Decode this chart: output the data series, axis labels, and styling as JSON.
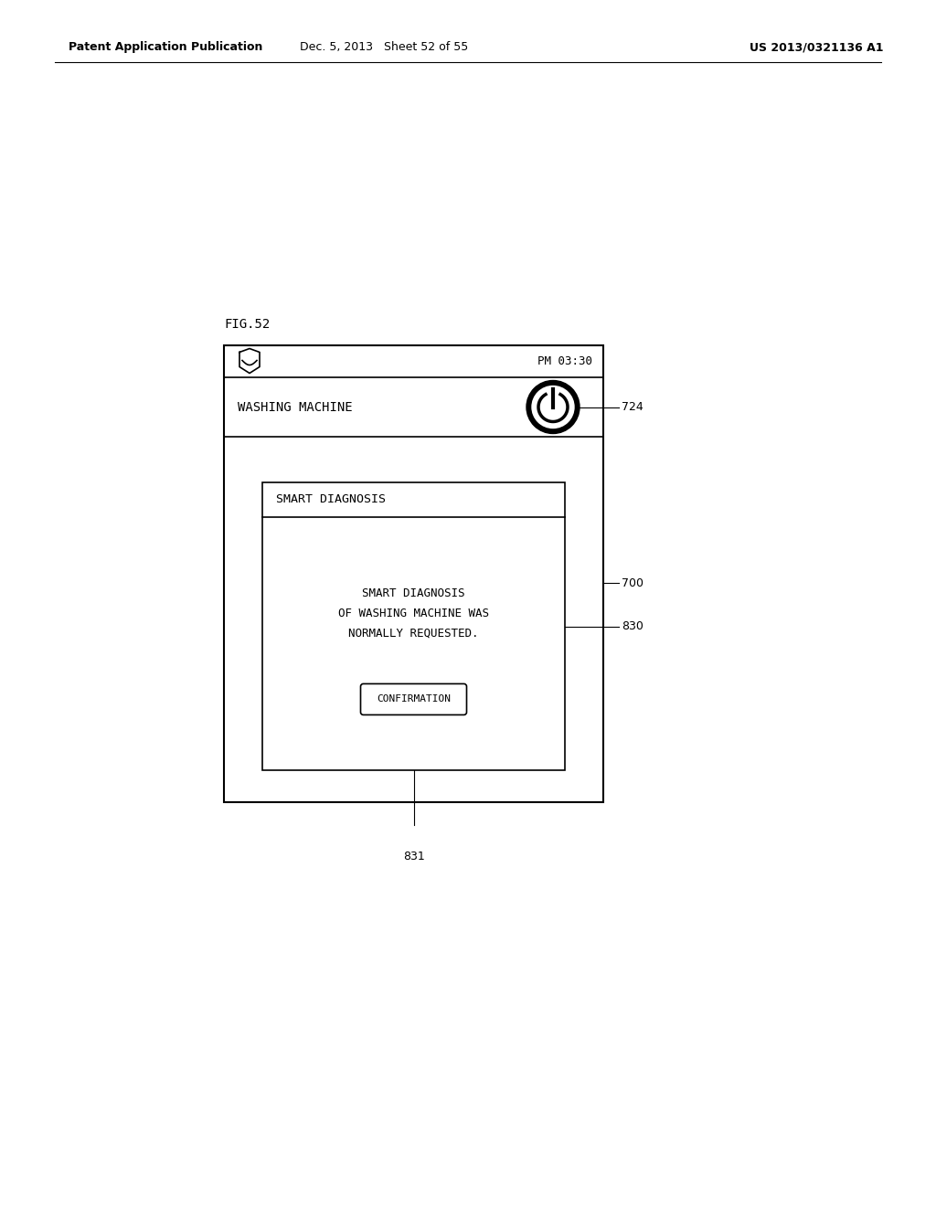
{
  "bg_color": "#ffffff",
  "header_text_left": "Patent Application Publication",
  "header_text_middle": "Dec. 5, 2013   Sheet 52 of 55",
  "header_text_right": "US 2013/0321136 A1",
  "fig_label": "FIG.52",
  "status_bar_text": "PM 03:30",
  "app_header_text": "WASHING MACHINE",
  "label_700": "700",
  "label_724": "724",
  "label_830": "830",
  "label_831": "831",
  "dialog_title": "SMART DIAGNOSIS",
  "dialog_body_line1": "SMART DIAGNOSIS",
  "dialog_body_line2": "OF WASHING MACHINE WAS",
  "dialog_body_line3": "NORMALLY REQUESTED.",
  "button_text": "CONFIRMATION",
  "font_color": "#000000",
  "line_color": "#000000",
  "font_mono": "DejaVu Sans Mono"
}
